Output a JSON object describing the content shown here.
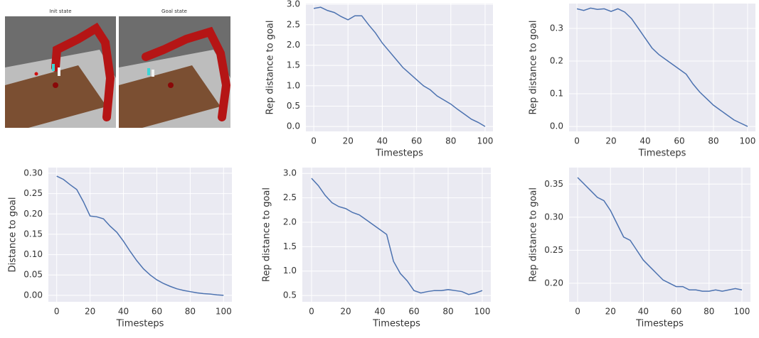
{
  "images": [
    {
      "title": "Init state"
    },
    {
      "title": "Goal state"
    }
  ],
  "chart_data": [
    {
      "type": "line",
      "xlabel": "Timesteps",
      "ylabel": "Rep distance to goal",
      "color": "#4c72b0",
      "grid": true,
      "x": [
        0,
        4,
        8,
        12,
        16,
        20,
        24,
        28,
        32,
        36,
        40,
        44,
        48,
        52,
        56,
        60,
        64,
        68,
        72,
        76,
        80,
        84,
        88,
        92,
        96,
        100
      ],
      "values": [
        2.9,
        2.93,
        2.85,
        2.8,
        2.7,
        2.62,
        2.72,
        2.72,
        2.5,
        2.3,
        2.05,
        1.85,
        1.65,
        1.45,
        1.3,
        1.15,
        1.0,
        0.9,
        0.75,
        0.65,
        0.55,
        0.42,
        0.3,
        0.18,
        0.1,
        0.0
      ],
      "xlim": [
        -4.6,
        104.6
      ],
      "xticks": [
        0,
        20,
        40,
        60,
        80,
        100
      ],
      "ylim": [
        -0.12,
        3.02
      ],
      "yticks": [
        {
          "value": 0,
          "label": "0.0"
        },
        0.5,
        {
          "value": 1,
          "label": "1.0"
        },
        1.5,
        {
          "value": 2,
          "label": "2.0"
        },
        2.5,
        {
          "value": 3,
          "label": "3.0"
        }
      ]
    },
    {
      "type": "line",
      "xlabel": "Timesteps",
      "ylabel": "Rep distance to goal",
      "color": "#4c72b0",
      "grid": true,
      "x": [
        0,
        4,
        8,
        12,
        16,
        20,
        24,
        28,
        32,
        36,
        40,
        44,
        48,
        52,
        56,
        60,
        64,
        68,
        72,
        76,
        80,
        84,
        88,
        92,
        96,
        100
      ],
      "values": [
        0.36,
        0.355,
        0.362,
        0.358,
        0.36,
        0.352,
        0.36,
        0.35,
        0.33,
        0.3,
        0.27,
        0.24,
        0.22,
        0.205,
        0.19,
        0.175,
        0.16,
        0.13,
        0.105,
        0.085,
        0.065,
        0.05,
        0.035,
        0.02,
        0.01,
        0.0
      ],
      "xlim": [
        -4.6,
        104.6
      ],
      "xticks": [
        0,
        20,
        40,
        60,
        80,
        100
      ],
      "ylim": [
        -0.015,
        0.376
      ],
      "yticks": [
        {
          "value": 0,
          "label": "0.0"
        },
        0.1,
        0.2,
        0.3
      ]
    },
    {
      "type": "line",
      "xlabel": "Timesteps",
      "ylabel": "Distance to goal",
      "color": "#4c72b0",
      "grid": true,
      "x": [
        0,
        4,
        8,
        12,
        16,
        20,
        24,
        28,
        32,
        36,
        40,
        44,
        48,
        52,
        56,
        60,
        64,
        68,
        72,
        76,
        80,
        84,
        88,
        92,
        96,
        100
      ],
      "values": [
        0.293,
        0.285,
        0.272,
        0.26,
        0.23,
        0.195,
        0.193,
        0.188,
        0.17,
        0.155,
        0.133,
        0.108,
        0.085,
        0.065,
        0.05,
        0.038,
        0.029,
        0.022,
        0.016,
        0.012,
        0.009,
        0.006,
        0.004,
        0.003,
        0.001,
        0.0
      ],
      "xlim": [
        -5,
        105
      ],
      "xticks": [
        0,
        20,
        40,
        60,
        80,
        100
      ],
      "ylim": [
        -0.016,
        0.314
      ],
      "yticks": [
        {
          "value": 0,
          "label": "0.00"
        },
        0.05,
        {
          "value": 0.1,
          "label": "0.10"
        },
        0.15,
        {
          "value": 0.2,
          "label": "0.20"
        },
        0.25,
        {
          "value": 0.3,
          "label": "0.30"
        }
      ]
    },
    {
      "type": "line",
      "xlabel": "Timesteps",
      "ylabel": "Rep distance to goal",
      "color": "#4c72b0",
      "grid": true,
      "x": [
        0,
        4,
        8,
        12,
        16,
        20,
        24,
        28,
        32,
        36,
        40,
        44,
        48,
        52,
        56,
        60,
        64,
        68,
        72,
        76,
        80,
        84,
        88,
        92,
        96,
        100
      ],
      "values": [
        2.9,
        2.75,
        2.55,
        2.4,
        2.32,
        2.28,
        2.2,
        2.15,
        2.05,
        1.95,
        1.85,
        1.75,
        1.2,
        0.95,
        0.8,
        0.6,
        0.55,
        0.58,
        0.6,
        0.6,
        0.62,
        0.6,
        0.58,
        0.52,
        0.55,
        0.6
      ],
      "xlim": [
        -5.4,
        105
      ],
      "xticks": [
        0,
        20,
        40,
        60,
        80,
        100
      ],
      "ylim": [
        0.37,
        3.12
      ],
      "yticks": [
        0.5,
        {
          "value": 1,
          "label": "1.0"
        },
        1.5,
        {
          "value": 2,
          "label": "2.0"
        },
        2.5,
        {
          "value": 3,
          "label": "3.0"
        }
      ]
    },
    {
      "type": "line",
      "xlabel": "Timesteps",
      "ylabel": "Rep distance to goal",
      "color": "#4c72b0",
      "grid": true,
      "x": [
        0,
        4,
        8,
        12,
        16,
        20,
        24,
        28,
        32,
        36,
        40,
        44,
        48,
        52,
        56,
        60,
        64,
        68,
        72,
        76,
        80,
        84,
        88,
        92,
        96,
        100
      ],
      "values": [
        0.36,
        0.35,
        0.34,
        0.33,
        0.325,
        0.31,
        0.29,
        0.27,
        0.265,
        0.25,
        0.235,
        0.225,
        0.215,
        0.205,
        0.2,
        0.195,
        0.195,
        0.19,
        0.19,
        0.188,
        0.188,
        0.19,
        0.188,
        0.19,
        0.192,
        0.19
      ],
      "xlim": [
        -5.2,
        105.2
      ],
      "xticks": [
        0,
        20,
        40,
        60,
        80,
        100
      ],
      "ylim": [
        0.172,
        0.375
      ],
      "yticks": [
        {
          "value": 0.2,
          "label": "0.20"
        },
        0.25,
        {
          "value": 0.3,
          "label": "0.30"
        },
        0.35
      ]
    }
  ]
}
